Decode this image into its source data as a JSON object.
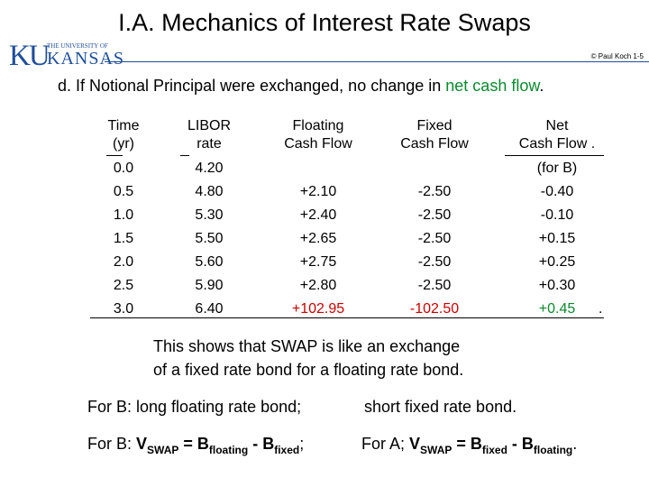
{
  "title": "I.A.  Mechanics of Interest Rate Swaps",
  "logo": {
    "small_text": "THE UNIVERSITY OF",
    "ku": "KU",
    "kansas": "KANSAS"
  },
  "copyright": "© Paul Koch 1-5",
  "heading": {
    "prefix": "d.  If  Notional Principal  were exchanged,  no change in ",
    "highlight": "net cash flow",
    "suffix": "."
  },
  "table": {
    "columns": [
      {
        "header1": "Time",
        "header2": "(yr)",
        "values": [
          "0.0",
          "0.5",
          "1.0",
          "1.5",
          "2.0",
          "2.5",
          "3.0"
        ]
      },
      {
        "header1": "LIBOR",
        "header2": "rate",
        "values": [
          "4.20",
          "4.80",
          "5.30",
          "5.50",
          "5.60",
          "5.90",
          "6.40"
        ]
      },
      {
        "header1": "Floating",
        "header2": "Cash Flow",
        "values": [
          "",
          "+2.10",
          "+2.40",
          "+2.65",
          "+2.75",
          "+2.80",
          "+102.95"
        ]
      },
      {
        "header1": "Fixed",
        "header2": "Cash Flow",
        "values": [
          "",
          "-2.50",
          "-2.50",
          "-2.50",
          "-2.50",
          "-2.50",
          "-102.50"
        ]
      },
      {
        "header1": "Net",
        "header2": "Cash Flow  .",
        "values": [
          "(for B)",
          "-0.40",
          "-0.10",
          "+0.15",
          "+0.25",
          "+0.30",
          "+0.45"
        ]
      }
    ],
    "trailing_dot": "."
  },
  "explanation": {
    "line1": "This shows that  SWAP  is like an exchange",
    "line2": "of  a fixed rate bond  for  a floating rate bond."
  },
  "row1": {
    "left": "For B:  long floating rate bond;",
    "right": "short fixed rate bond."
  },
  "row2": {
    "left_prefix": "For B:  ",
    "v": "V",
    "v_sub": "SWAP",
    "eq": " = ",
    "b1": "B",
    "b1_sub": "floating",
    "minus": " - ",
    "b2": "B",
    "b2_sub": "fixed",
    "end1": ";",
    "right_prefix": "For A;  ",
    "v_r": "V",
    "v_r_sub": "SWAP",
    "eq_r": " = ",
    "b1_r": "B",
    "b1_r_sub": "fixed",
    "minus_r": " - ",
    "b2_r": "B",
    "b2_r_sub": "floating",
    "end2": "."
  },
  "colors": {
    "accent": "#1f4e9c",
    "green": "#0a8a2e",
    "red": "#cc0000"
  }
}
